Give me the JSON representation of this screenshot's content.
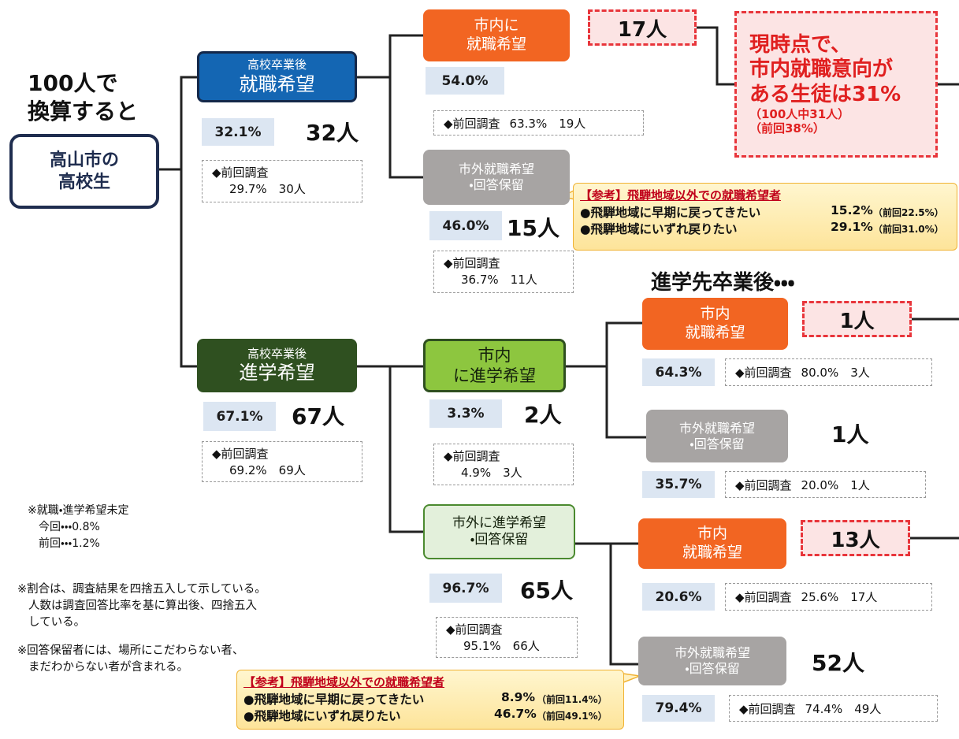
{
  "heading": [
    "100人で",
    "換算すると"
  ],
  "root": [
    "高山市の",
    "高校生"
  ],
  "after_study_heading": "進学先卒業後・・・",
  "nodes": {
    "employ": {
      "lines": [
        "高校卒業後",
        "就職希望"
      ],
      "percent": "32.1%",
      "count": "32人",
      "previous": [
        "◆前回調査",
        "29.7%　30人"
      ]
    },
    "employ_city": {
      "lines": [
        "市内に",
        "就職希望"
      ],
      "percent": "54.0%",
      "count": "17人",
      "previous": [
        "◆前回調査",
        "63.3%　19人"
      ]
    },
    "employ_out": {
      "lines": [
        "市外就職希望",
        "・回答保留"
      ],
      "percent": "46.0%",
      "count": "15人",
      "previous": [
        "◆前回調査",
        "36.7%　11人"
      ]
    },
    "study": {
      "lines": [
        "高校卒業後",
        "進学希望"
      ],
      "percent": "67.1%",
      "count": "67人",
      "previous": [
        "◆前回調査",
        "69.2%　69人"
      ]
    },
    "study_city": {
      "lines": [
        "市内",
        "に進学希望"
      ],
      "percent": "3.3%",
      "count": "2人",
      "previous": [
        "◆前回調査",
        "4.9%　3人"
      ]
    },
    "study_city_job": {
      "lines": [
        "市内",
        "就職希望"
      ],
      "percent": "64.3%",
      "count": "1人",
      "previous": [
        "◆前回調査",
        "80.0%　3人"
      ]
    },
    "study_city_out": {
      "lines": [
        "市外就職希望",
        "・回答保留"
      ],
      "percent": "35.7%",
      "count": "1人",
      "previous": [
        "◆前回調査",
        "20.0%　1人"
      ]
    },
    "study_out": {
      "lines": [
        "市外に進学希望",
        "・回答保留"
      ],
      "percent": "96.7%",
      "count": "65人",
      "previous": [
        "◆前回調査",
        "95.1%　66人"
      ]
    },
    "study_out_job": {
      "lines": [
        "市内",
        "就職希望"
      ],
      "percent": "20.6%",
      "count": "13人",
      "previous": [
        "◆前回調査",
        "25.6%　17人"
      ]
    },
    "study_out_out": {
      "lines": [
        "市外就職希望",
        "・回答保留"
      ],
      "percent": "79.4%",
      "count": "52人",
      "previous": [
        "◆前回調査",
        "74.4%　49人"
      ]
    }
  },
  "callout": {
    "lines": [
      "現時点で、",
      "市内就職意向が",
      "ある生徒は31%"
    ],
    "sub": [
      "（100人中31人）",
      "（前回38%）"
    ]
  },
  "references": [
    {
      "title": "【参考】飛騨地域以外での就職希望者",
      "items": [
        {
          "label": "●飛騨地域に早期に戻ってきたい",
          "value": "15.2%",
          "previous": "（前回22.5%）"
        },
        {
          "label": "●飛騨地域にいずれ戻りたい",
          "value": "29.1%",
          "previous": "（前回31.0%）"
        }
      ]
    },
    {
      "title": "【参考】飛騨地域以外での就職希望者",
      "items": [
        {
          "label": "●飛騨地域に早期に戻ってきたい",
          "value": "8.9%",
          "previous": "（前回11.4%）"
        },
        {
          "label": "●飛騨地域にいずれ戻りたい",
          "value": "46.7%",
          "previous": "（前回49.1%）"
        }
      ]
    }
  ],
  "notes": [
    [
      "※就職・進学希望未定",
      "今回・・・0.8%",
      "前回・・・1.2%"
    ],
    [
      "※割合は、調査結果を四捨五入して示している。",
      "人数は調査回答比率を基に算出後、四捨五入",
      "している。"
    ],
    [
      "※回答保留者には、場所にこだわらない者、",
      "まだわからない者が含まれる。"
    ]
  ]
}
